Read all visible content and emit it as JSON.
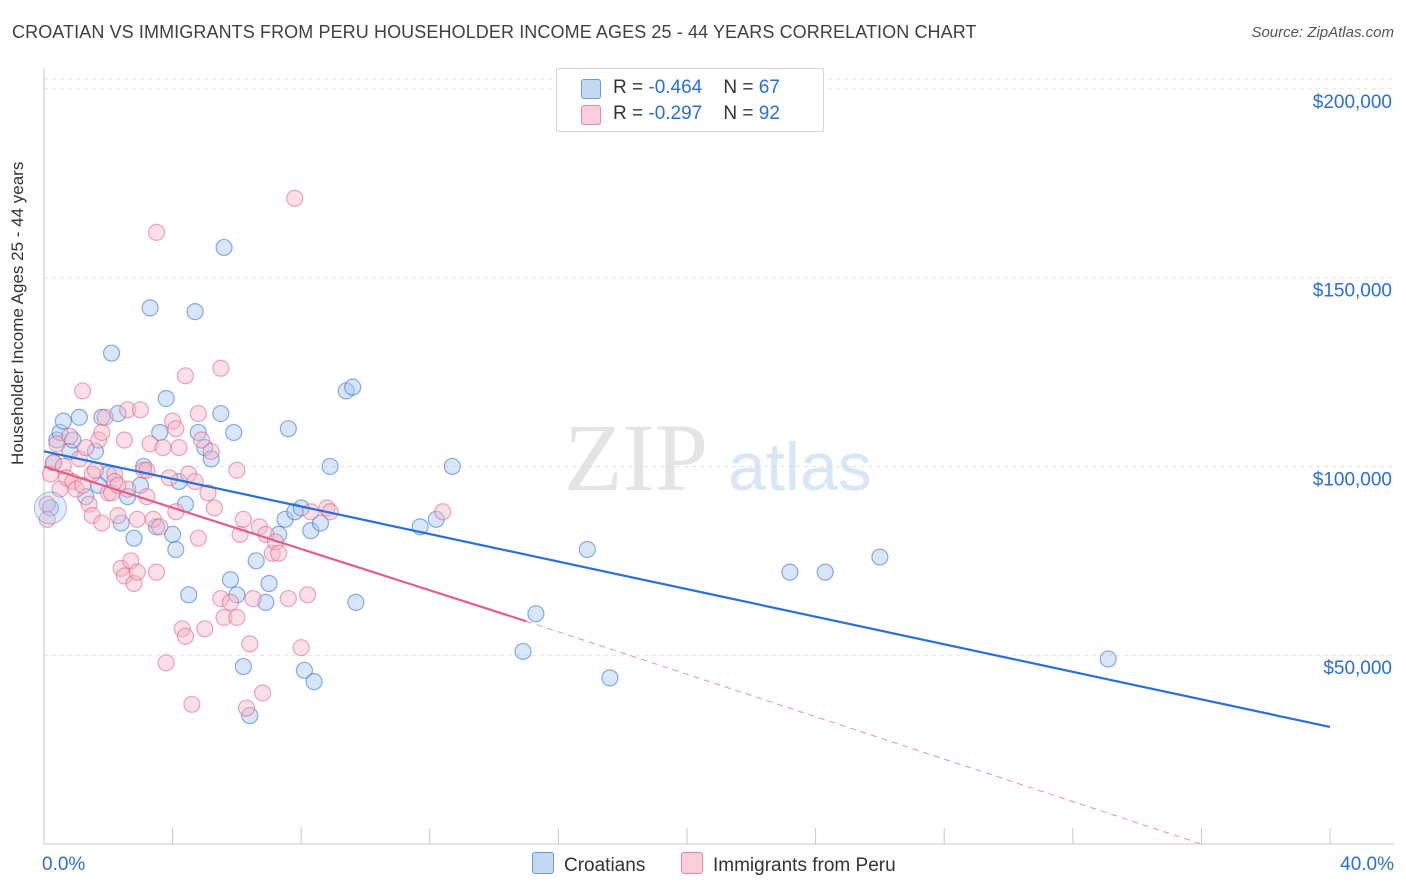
{
  "title": "CROATIAN VS IMMIGRANTS FROM PERU HOUSEHOLDER INCOME AGES 25 - 44 YEARS CORRELATION CHART",
  "source": "Source: ZipAtlas.com",
  "watermark": {
    "zip": "ZIP",
    "atlas": "atlas"
  },
  "legend_top": {
    "rows": [
      {
        "r_label": "R = ",
        "r_value": "-0.464",
        "n_label": "N = ",
        "n_value": "67",
        "color": "#a8c8f0"
      },
      {
        "r_label": "R = ",
        "r_value": "-0.297",
        "n_label": "N = ",
        "n_value": "92",
        "color": "#f5b8c8"
      }
    ]
  },
  "chart_data": {
    "type": "scatter",
    "title": "CROATIAN VS IMMIGRANTS FROM PERU HOUSEHOLDER INCOME AGES 25 - 44 YEARS CORRELATION CHART",
    "xlabel": "",
    "ylabel": "Householder Income Ages 25 - 44 years",
    "xlim": [
      0,
      40
    ],
    "ylim": [
      0,
      205000
    ],
    "x_tick_labels": [
      "0.0%",
      "40.0%"
    ],
    "y_ticks": [
      50000,
      100000,
      150000,
      200000
    ],
    "y_tick_labels": [
      "$50,000",
      "$100,000",
      "$150,000",
      "$200,000"
    ],
    "grid": true,
    "legend_placement": "bottom",
    "series": [
      {
        "name": "Croatians",
        "color": "#2a6fd6",
        "fill": "#a8c8f0",
        "trend": {
          "x": [
            0,
            40
          ],
          "y": [
            104000,
            31000
          ]
        },
        "points": [
          [
            0.2,
            89000
          ],
          [
            0.3,
            101000
          ],
          [
            0.4,
            107000
          ],
          [
            0.5,
            109000
          ],
          [
            0.6,
            112000
          ],
          [
            0.8,
            104000
          ],
          [
            0.9,
            107000
          ],
          [
            1.1,
            113000
          ],
          [
            1.3,
            92000
          ],
          [
            1.6,
            104000
          ],
          [
            1.8,
            113000
          ],
          [
            2.0,
            98000
          ],
          [
            2.1,
            130000
          ],
          [
            2.3,
            114000
          ],
          [
            2.4,
            85000
          ],
          [
            2.6,
            92000
          ],
          [
            2.8,
            81000
          ],
          [
            3.0,
            95000
          ],
          [
            3.1,
            100000
          ],
          [
            3.3,
            142000
          ],
          [
            3.5,
            84000
          ],
          [
            3.6,
            109000
          ],
          [
            3.8,
            118000
          ],
          [
            4.0,
            82000
          ],
          [
            4.1,
            78000
          ],
          [
            4.2,
            96000
          ],
          [
            4.4,
            90000
          ],
          [
            4.5,
            66000
          ],
          [
            4.7,
            141000
          ],
          [
            4.8,
            109000
          ],
          [
            5.0,
            105000
          ],
          [
            5.2,
            102000
          ],
          [
            5.5,
            114000
          ],
          [
            5.6,
            158000
          ],
          [
            5.8,
            70000
          ],
          [
            5.9,
            109000
          ],
          [
            6.0,
            66000
          ],
          [
            6.2,
            47000
          ],
          [
            6.4,
            34000
          ],
          [
            6.6,
            75000
          ],
          [
            6.9,
            64000
          ],
          [
            7.0,
            69000
          ],
          [
            7.3,
            82000
          ],
          [
            7.5,
            86000
          ],
          [
            7.6,
            110000
          ],
          [
            7.8,
            88000
          ],
          [
            8.0,
            89000
          ],
          [
            8.1,
            46000
          ],
          [
            8.3,
            83000
          ],
          [
            8.4,
            43000
          ],
          [
            8.6,
            85000
          ],
          [
            8.9,
            100000
          ],
          [
            9.4,
            120000
          ],
          [
            9.6,
            121000
          ],
          [
            9.7,
            64000
          ],
          [
            11.7,
            84000
          ],
          [
            12.2,
            86000
          ],
          [
            12.7,
            100000
          ],
          [
            14.9,
            51000
          ],
          [
            15.3,
            61000
          ],
          [
            16.9,
            78000
          ],
          [
            17.6,
            44000
          ],
          [
            23.2,
            72000
          ],
          [
            24.3,
            72000
          ],
          [
            26.0,
            76000
          ],
          [
            33.1,
            49000
          ],
          [
            1.7,
            95000
          ]
        ]
      },
      {
        "name": "Immigrants from Peru",
        "color": "#e0608a",
        "fill": "#f5b8c8",
        "trend": {
          "x": [
            0,
            15
          ],
          "y": [
            100000,
            59000
          ]
        },
        "trend_ext": {
          "x": [
            15,
            36
          ],
          "y": [
            59000,
            0
          ]
        },
        "points": [
          [
            0.1,
            90000
          ],
          [
            0.1,
            86000
          ],
          [
            0.2,
            98000
          ],
          [
            0.3,
            101000
          ],
          [
            0.4,
            106000
          ],
          [
            0.5,
            94000
          ],
          [
            0.6,
            100000
          ],
          [
            0.7,
            97000
          ],
          [
            0.8,
            108000
          ],
          [
            0.9,
            96000
          ],
          [
            1.0,
            94000
          ],
          [
            1.1,
            102000
          ],
          [
            1.2,
            120000
          ],
          [
            1.3,
            105000
          ],
          [
            1.4,
            90000
          ],
          [
            1.5,
            98000
          ],
          [
            1.5,
            87000
          ],
          [
            1.6,
            99000
          ],
          [
            1.7,
            107000
          ],
          [
            1.8,
            109000
          ],
          [
            1.8,
            85000
          ],
          [
            1.9,
            113000
          ],
          [
            2.0,
            93000
          ],
          [
            2.1,
            93000
          ],
          [
            2.2,
            98000
          ],
          [
            2.2,
            96000
          ],
          [
            2.3,
            87000
          ],
          [
            2.4,
            73000
          ],
          [
            2.5,
            107000
          ],
          [
            2.5,
            71000
          ],
          [
            2.6,
            94000
          ],
          [
            2.6,
            115000
          ],
          [
            2.7,
            75000
          ],
          [
            2.8,
            69000
          ],
          [
            2.9,
            72000
          ],
          [
            2.9,
            86000
          ],
          [
            3.0,
            115000
          ],
          [
            3.1,
            99000
          ],
          [
            3.2,
            99000
          ],
          [
            3.2,
            92000
          ],
          [
            3.3,
            106000
          ],
          [
            3.4,
            86000
          ],
          [
            3.5,
            162000
          ],
          [
            3.5,
            72000
          ],
          [
            3.6,
            84000
          ],
          [
            3.7,
            105000
          ],
          [
            3.8,
            48000
          ],
          [
            3.9,
            97000
          ],
          [
            4.0,
            112000
          ],
          [
            4.1,
            110000
          ],
          [
            4.1,
            88000
          ],
          [
            4.2,
            105000
          ],
          [
            4.3,
            57000
          ],
          [
            4.4,
            124000
          ],
          [
            4.4,
            55000
          ],
          [
            4.5,
            98000
          ],
          [
            4.6,
            37000
          ],
          [
            4.7,
            96000
          ],
          [
            4.8,
            114000
          ],
          [
            4.8,
            81000
          ],
          [
            4.9,
            107000
          ],
          [
            5.0,
            57000
          ],
          [
            5.1,
            93000
          ],
          [
            5.2,
            104000
          ],
          [
            5.3,
            89000
          ],
          [
            5.5,
            126000
          ],
          [
            5.5,
            65000
          ],
          [
            5.6,
            60000
          ],
          [
            5.8,
            64000
          ],
          [
            6.0,
            99000
          ],
          [
            6.1,
            82000
          ],
          [
            6.2,
            86000
          ],
          [
            6.3,
            36000
          ],
          [
            6.4,
            53000
          ],
          [
            6.5,
            65000
          ],
          [
            6.7,
            84000
          ],
          [
            6.8,
            40000
          ],
          [
            6.9,
            82000
          ],
          [
            7.1,
            77000
          ],
          [
            7.2,
            80000
          ],
          [
            7.3,
            77000
          ],
          [
            7.6,
            65000
          ],
          [
            7.8,
            171000
          ],
          [
            8.0,
            52000
          ],
          [
            8.2,
            66000
          ],
          [
            8.3,
            88000
          ],
          [
            8.8,
            89000
          ],
          [
            8.9,
            88000
          ],
          [
            12.4,
            88000
          ],
          [
            1.2,
            95000
          ],
          [
            2.3,
            95000
          ],
          [
            6.0,
            60000
          ]
        ]
      }
    ]
  }
}
